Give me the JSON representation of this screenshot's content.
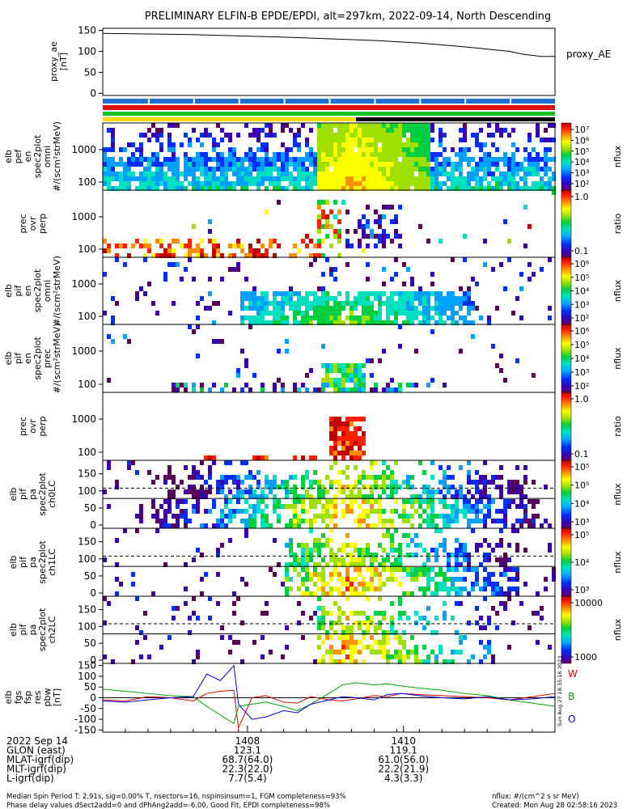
{
  "title": "PRELIMINARY ELFIN-B EPDE/EPDI, alt=297km, 2022-09-14, North Descending",
  "chart_data": [
    {
      "type": "line",
      "panel": "proxy_ae",
      "ylabel_lines": [
        "proxy_ae",
        "[nT]"
      ],
      "yticks": [
        "150",
        "100",
        "50",
        "0"
      ],
      "ylim": [
        -5,
        155
      ],
      "legend": "proxy_AE",
      "series": [
        {
          "name": "proxy_AE",
          "x": [
            0,
            0.2,
            0.4,
            0.6,
            0.7,
            0.8,
            0.9,
            0.93,
            0.97,
            1.0
          ],
          "values": [
            143,
            140,
            134,
            126,
            120,
            111,
            100,
            93,
            88,
            88
          ]
        }
      ]
    },
    {
      "type": "heatmap",
      "panel": "elb pef en spec2plot omni",
      "ylabel_lines": [
        "elb",
        "pef",
        "en",
        "spec2plot",
        "omni",
        "#/(scm²strMeV)"
      ],
      "yticks": [
        "1000",
        "100"
      ],
      "colorbar": {
        "kind": "flux",
        "ticks": [
          "10⁷",
          "10⁶",
          "10⁵",
          "10⁴",
          "10³",
          "10²"
        ],
        "label": "nflux"
      }
    },
    {
      "type": "heatmap",
      "panel": "prec ovr perp (electrons)",
      "ylabel_lines": [
        "prec",
        "ovr",
        "perp"
      ],
      "yticks": [
        "1000",
        "100"
      ],
      "colorbar": {
        "kind": "ratio",
        "ticks": [
          "1.0",
          "0.1"
        ],
        "label": "ratio"
      }
    },
    {
      "type": "heatmap",
      "panel": "elb pif en spec2plot omni",
      "ylabel_lines": [
        "elb",
        "pif",
        "en",
        "spec2plot",
        "omni",
        "#/(scm²strMeV)"
      ],
      "yticks": [
        "1000",
        "100"
      ],
      "colorbar": {
        "kind": "flux",
        "ticks": [
          "10⁶",
          "10⁵",
          "10⁴",
          "10³",
          "10²"
        ],
        "label": "nflux"
      }
    },
    {
      "type": "heatmap",
      "panel": "elb pif en spec2plot prec",
      "ylabel_lines": [
        "elb",
        "pif",
        "en",
        "spec2plot",
        "prec",
        "#/(scm²strMeV)"
      ],
      "yticks": [
        "1000",
        "100"
      ],
      "colorbar": {
        "kind": "flux",
        "ticks": [
          "10⁶",
          "10⁵",
          "10⁴",
          "10³",
          "10²"
        ],
        "label": "nflux"
      }
    },
    {
      "type": "heatmap",
      "panel": "prec ovr perp (ions)",
      "ylabel_lines": [
        "prec",
        "ovr",
        "perp"
      ],
      "yticks": [
        "1000",
        "100"
      ],
      "colorbar": {
        "kind": "ratio",
        "ticks": [
          "1.0",
          "0.1"
        ],
        "label": "ratio"
      }
    },
    {
      "type": "heatmap",
      "panel": "elb pif pa spec2plot ch0LC",
      "ylabel_lines": [
        "elb",
        "pif",
        "pa",
        "spec2plot",
        "ch0LC"
      ],
      "yticks": [
        "150",
        "100",
        "50",
        "0"
      ],
      "colorbar": {
        "kind": "flux",
        "ticks": [
          "10⁵",
          "10⁵",
          "10⁴",
          "10³"
        ],
        "label": "nflux"
      }
    },
    {
      "type": "heatmap",
      "panel": "elb pif pa spec2plot ch1LC",
      "ylabel_lines": [
        "elb",
        "pif",
        "pa",
        "spec2plot",
        "ch1LC"
      ],
      "yticks": [
        "150",
        "100",
        "50",
        "0"
      ],
      "colorbar": {
        "kind": "flux",
        "ticks": [
          "10⁵",
          "10⁴",
          "10³"
        ],
        "label": "nflux"
      }
    },
    {
      "type": "heatmap",
      "panel": "elb pif pa spec2plot ch2LC",
      "ylabel_lines": [
        "elb",
        "pif",
        "pa",
        "spec2plot",
        "ch2LC"
      ],
      "yticks": [
        "150",
        "100",
        "50",
        "0"
      ],
      "colorbar": {
        "kind": "flux",
        "ticks": [
          "10000",
          "1000"
        ],
        "label": "nflux"
      }
    },
    {
      "type": "line",
      "panel": "elb fgs fsp res pbw",
      "ylabel_lines": [
        "elb",
        "fgs",
        "fsp",
        "res",
        "pbw",
        "[nT]"
      ],
      "yticks": [
        "150",
        "100",
        "50",
        "0",
        "-50",
        "-100",
        "-150"
      ],
      "ylim": [
        -160,
        160
      ],
      "series": [
        {
          "name": "W",
          "color": "#d40000",
          "x": [
            0,
            0.05,
            0.1,
            0.15,
            0.2,
            0.23,
            0.26,
            0.29,
            0.3,
            0.33,
            0.36,
            0.4,
            0.43,
            0.46,
            0.5,
            0.53,
            0.56,
            0.6,
            0.63,
            0.66,
            0.7,
            0.75,
            0.8,
            0.85,
            0.9,
            0.95,
            1.0
          ],
          "values": [
            -10,
            -15,
            5,
            0,
            -15,
            20,
            30,
            35,
            -140,
            0,
            10,
            -20,
            -25,
            5,
            -10,
            -15,
            -5,
            10,
            5,
            20,
            15,
            10,
            5,
            0,
            -10,
            5,
            20
          ]
        },
        {
          "name": "B",
          "color": "#00a000",
          "x": [
            0,
            0.05,
            0.1,
            0.15,
            0.2,
            0.23,
            0.26,
            0.29,
            0.3,
            0.33,
            0.36,
            0.4,
            0.43,
            0.46,
            0.5,
            0.53,
            0.56,
            0.6,
            0.63,
            0.66,
            0.7,
            0.75,
            0.8,
            0.85,
            0.9,
            0.95,
            1.0
          ],
          "values": [
            40,
            30,
            20,
            10,
            5,
            -40,
            -80,
            -120,
            -40,
            -30,
            -20,
            -40,
            -60,
            -30,
            20,
            60,
            70,
            60,
            65,
            55,
            45,
            35,
            20,
            10,
            -10,
            -25,
            -40
          ]
        },
        {
          "name": "O",
          "color": "#0000d0",
          "x": [
            0,
            0.05,
            0.1,
            0.15,
            0.2,
            0.23,
            0.26,
            0.29,
            0.3,
            0.33,
            0.36,
            0.4,
            0.43,
            0.46,
            0.5,
            0.53,
            0.56,
            0.6,
            0.63,
            0.66,
            0.7,
            0.75,
            0.8,
            0.85,
            0.9,
            0.95,
            1.0
          ],
          "values": [
            -15,
            -20,
            -10,
            0,
            5,
            110,
            80,
            150,
            -30,
            -100,
            -90,
            -60,
            -70,
            -30,
            -10,
            5,
            0,
            -10,
            15,
            20,
            10,
            0,
            -5,
            5,
            -10,
            -5,
            5
          ]
        }
      ]
    }
  ],
  "xaxis": {
    "tick_labels": [
      "1408",
      "1410"
    ],
    "rows": [
      {
        "label": "2022 Sep 14",
        "values": [
          "",
          ""
        ]
      },
      {
        "label": "GLON (east)",
        "values": [
          "123.1",
          "119.1"
        ]
      },
      {
        "label": "MLAT-igrf(dip)",
        "values": [
          "68.7(64.0)",
          "61.0(56.0)"
        ]
      },
      {
        "label": "MLT-igrf(dip)",
        "values": [
          "22.3(22.0)",
          "22.2(21.9)"
        ]
      },
      {
        "label": "L-igrf(dip)",
        "values": [
          "7.7(5.4)",
          "4.3(3.3)"
        ]
      }
    ]
  },
  "footer": {
    "left1": "Median Spin Period T: 2.91s, sig=0.00% T, nsectors=16, nspinsinsum=1, FGM completeness=93%",
    "left2": "Phase delay values dSect2add=0 and dPhAng2add=-6.00, Good Fit, EPDI completeness=98%",
    "right1": "nflux: #/(cm^2 s sr MeV)",
    "right2": "Created: Mon Aug 28 02:58:16 2023",
    "vertical": "Sun Aug 27 18:35:16 2023"
  },
  "colors": {
    "W": "#d40000",
    "B": "#00a000",
    "O": "#0000d0"
  }
}
